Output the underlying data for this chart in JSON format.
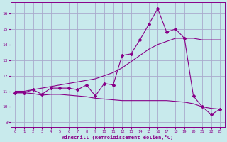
{
  "xlabel": "Windchill (Refroidissement éolien,°C)",
  "background_color": "#c8eaec",
  "grid_color": "#aaaacc",
  "line_color": "#880088",
  "xlim": [
    -0.5,
    23.5
  ],
  "ylim": [
    8.7,
    16.7
  ],
  "yticks": [
    9,
    10,
    11,
    12,
    13,
    14,
    15,
    16
  ],
  "xticks": [
    0,
    1,
    2,
    3,
    4,
    5,
    6,
    7,
    8,
    9,
    10,
    11,
    12,
    13,
    14,
    15,
    16,
    17,
    18,
    19,
    20,
    21,
    22,
    23
  ],
  "series": {
    "line1": {
      "x": [
        0,
        1,
        2,
        3,
        4,
        5,
        6,
        7,
        8,
        9,
        10,
        11,
        12,
        13,
        14,
        15,
        16,
        17,
        18,
        19,
        20,
        21,
        22,
        23
      ],
      "y": [
        10.9,
        10.9,
        11.1,
        10.8,
        11.2,
        11.2,
        11.2,
        11.1,
        11.4,
        10.7,
        11.5,
        11.4,
        13.3,
        13.4,
        14.3,
        15.3,
        16.3,
        14.8,
        15.0,
        14.4,
        10.7,
        10.0,
        9.5,
        9.85
      ]
    },
    "line2": {
      "x": [
        0,
        1,
        2,
        3,
        4,
        5,
        6,
        7,
        8,
        9,
        10,
        11,
        12,
        13,
        14,
        15,
        16,
        17,
        18,
        19,
        20,
        21,
        22,
        23
      ],
      "y": [
        11.0,
        11.0,
        11.1,
        11.2,
        11.3,
        11.4,
        11.5,
        11.6,
        11.7,
        11.8,
        12.0,
        12.2,
        12.5,
        12.9,
        13.3,
        13.7,
        14.0,
        14.2,
        14.4,
        14.4,
        14.4,
        14.3,
        14.3,
        14.3
      ]
    },
    "line3": {
      "x": [
        0,
        1,
        2,
        3,
        4,
        5,
        6,
        7,
        8,
        9,
        10,
        11,
        12,
        13,
        14,
        15,
        16,
        17,
        18,
        19,
        20,
        21,
        22,
        23
      ],
      "y": [
        10.9,
        10.9,
        10.85,
        10.75,
        10.8,
        10.8,
        10.75,
        10.7,
        10.65,
        10.55,
        10.5,
        10.45,
        10.4,
        10.4,
        10.4,
        10.4,
        10.4,
        10.4,
        10.35,
        10.3,
        10.2,
        10.0,
        9.9,
        9.85
      ]
    }
  }
}
